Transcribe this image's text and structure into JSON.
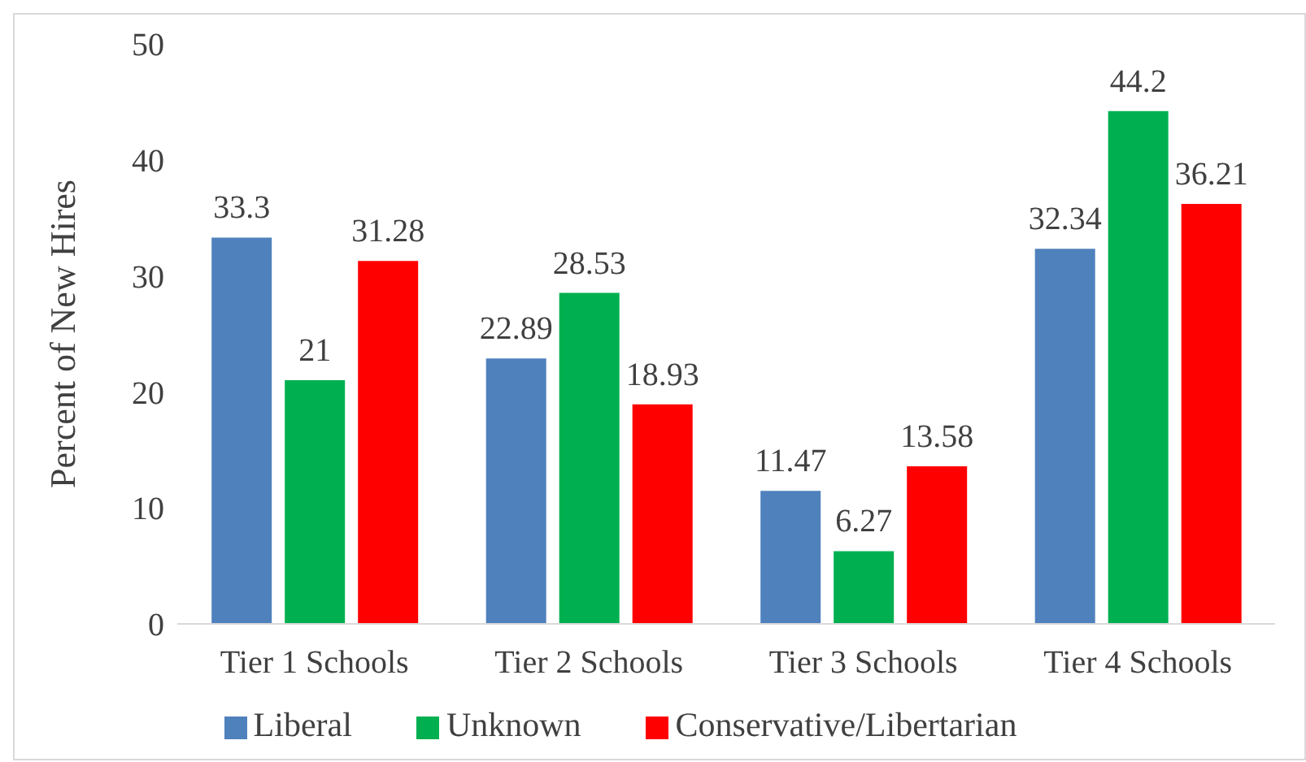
{
  "chart_data": {
    "type": "bar",
    "ylabel": "Percent of New Hires",
    "categories": [
      "Tier 1 Schools",
      "Tier 2 Schools",
      "Tier 3 Schools",
      "Tier 4 Schools"
    ],
    "series": [
      {
        "name": "Liberal",
        "color": "#4f81bd",
        "values": [
          33.3,
          22.89,
          11.47,
          32.34
        ]
      },
      {
        "name": "Unknown",
        "color": "#00b050",
        "values": [
          21,
          28.53,
          6.27,
          44.2
        ]
      },
      {
        "name": "Conservative/Libertarian",
        "color": "#ff0000",
        "values": [
          31.28,
          18.93,
          13.58,
          36.21
        ]
      }
    ],
    "ylim": [
      0,
      50
    ],
    "yticks": [
      0,
      10,
      20,
      30,
      40,
      50
    ],
    "grid": false,
    "legend": "bottom",
    "data_labels": true
  }
}
